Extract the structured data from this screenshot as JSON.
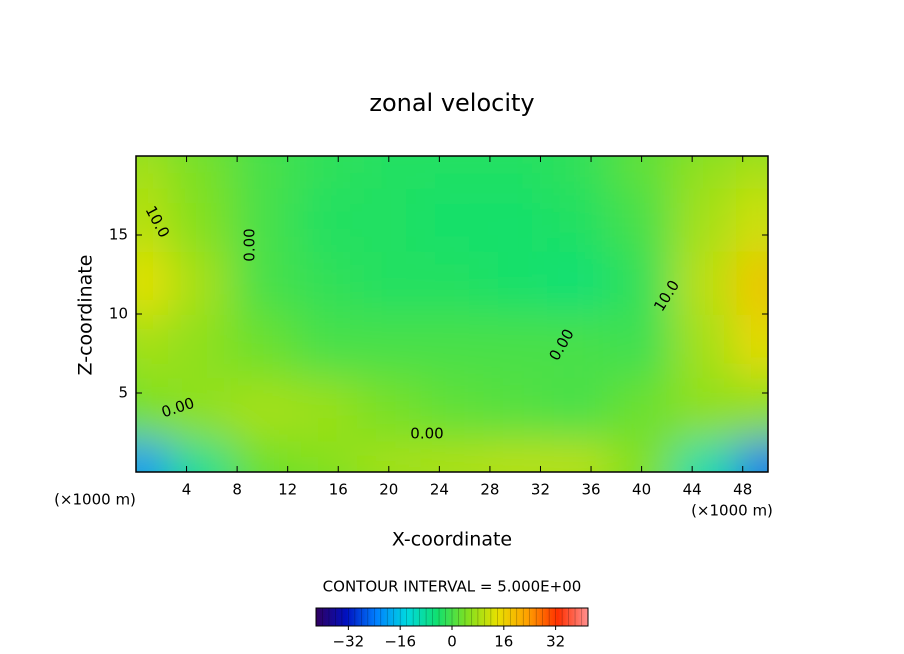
{
  "chart_data": {
    "type": "contour",
    "title": "zonal velocity",
    "xlabel": "X-coordinate",
    "ylabel": "Z-coordinate",
    "x_unit": "(×1000 m)",
    "xlim": [
      0,
      50
    ],
    "ylim": [
      0,
      20
    ],
    "xticks": [
      4,
      8,
      12,
      16,
      20,
      24,
      28,
      32,
      36,
      40,
      44,
      48
    ],
    "yticks": [
      5,
      10,
      15
    ],
    "x": [
      0,
      5,
      10,
      15,
      20,
      25,
      30,
      35,
      40,
      45,
      50
    ],
    "y": [
      0,
      4,
      8,
      12,
      16,
      20
    ],
    "z": [
      [
        -22,
        -8,
        3,
        5,
        8,
        9,
        10,
        10,
        5,
        -10,
        -25
      ],
      [
        4,
        6,
        8,
        7,
        4,
        2,
        1,
        0,
        3,
        6,
        6
      ],
      [
        8,
        6,
        3,
        0,
        0,
        0,
        0,
        0,
        -1,
        8,
        15
      ],
      [
        14,
        8,
        0,
        -2,
        -3,
        -3,
        -4,
        -5,
        -2,
        10,
        18
      ],
      [
        10,
        5,
        0,
        -3,
        -3,
        -4,
        -4,
        -3,
        0,
        8,
        12
      ],
      [
        8,
        4,
        0,
        -2,
        -3,
        -3,
        -3,
        -2,
        2,
        6,
        8
      ]
    ],
    "contour_labels": [
      {
        "value": 10,
        "label": "10.0"
      },
      {
        "value": 0,
        "label": "0.00"
      },
      {
        "value": 0,
        "label": "0.00"
      },
      {
        "value": 0,
        "label": "0.00"
      },
      {
        "value": 0,
        "label": "0.00"
      },
      {
        "value": 10,
        "label": "10.0"
      }
    ],
    "contour_interval": "CONTOUR INTERVAL = 5.000E+00",
    "clim": [
      -42,
      42
    ],
    "cticks": [
      {
        "value": -32,
        "label": "−32"
      },
      {
        "value": -16,
        "label": "−16"
      },
      0,
      16,
      32
    ],
    "colormap": [
      "#300060",
      "#0010c0",
      "#0080ff",
      "#00d8e0",
      "#10e070",
      "#80e020",
      "#e8e000",
      "#ffa000",
      "#ff3000",
      "#ff9090"
    ]
  }
}
